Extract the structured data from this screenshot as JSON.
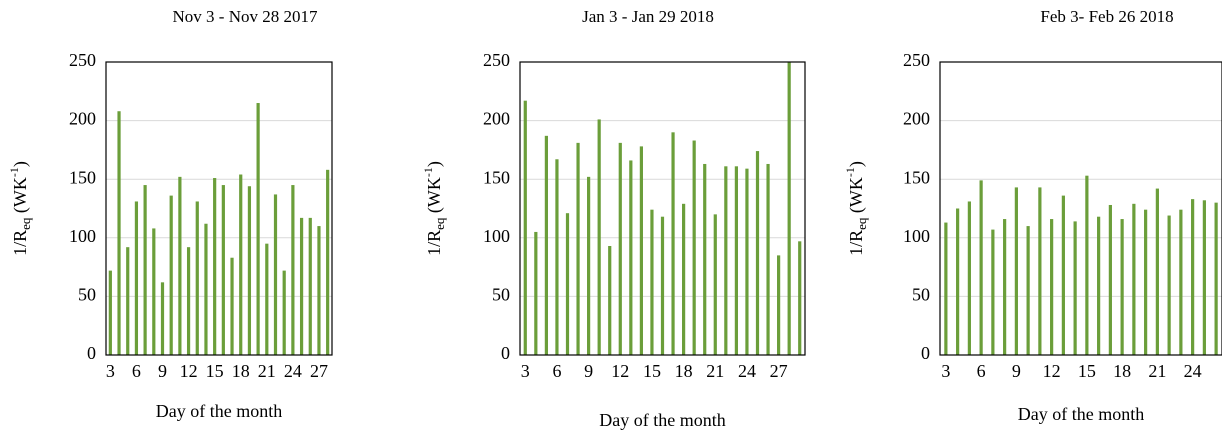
{
  "chart_data": [
    {
      "type": "bar",
      "title": "Nov 3 - Nov 28 2017",
      "x_label": "Day of the month",
      "y_label": [
        "1/R",
        "eq",
        " (WK",
        "-1",
        ")"
      ],
      "categories": [
        "3",
        null,
        null,
        "6",
        null,
        null,
        "9",
        null,
        null,
        "12",
        null,
        null,
        "15",
        null,
        null,
        "18",
        null,
        null,
        "21",
        null,
        null,
        "24",
        null,
        null,
        "27",
        null
      ],
      "values": [
        72,
        208,
        92,
        131,
        145,
        108,
        62,
        136,
        152,
        92,
        131,
        112,
        151,
        145,
        83,
        154,
        144,
        215,
        95,
        137,
        72,
        145,
        117,
        117,
        110,
        158
      ],
      "color": "#6b9e3a",
      "ylim": [
        0,
        250
      ],
      "yticks": [
        0,
        50,
        100,
        150,
        200,
        250
      ],
      "grid": true
    },
    {
      "type": "bar",
      "title": "Jan 3 - Jan 29 2018",
      "x_label": "Day of the month",
      "y_label": [
        "1/R",
        "eq",
        " (WK",
        "-1",
        ")"
      ],
      "categories": [
        "3",
        null,
        null,
        "6",
        null,
        null,
        "9",
        null,
        null,
        "12",
        null,
        null,
        "15",
        null,
        null,
        "18",
        null,
        null,
        "21",
        null,
        null,
        "24",
        null,
        null,
        "27",
        null,
        null
      ],
      "values": [
        217,
        105,
        187,
        167,
        121,
        181,
        152,
        201,
        93,
        181,
        166,
        178,
        124,
        118,
        190,
        129,
        183,
        163,
        120,
        161,
        161,
        159,
        174,
        163,
        85,
        250,
        97
      ],
      "color": "#6b9e3a",
      "ylim": [
        0,
        250
      ],
      "yticks": [
        0,
        50,
        100,
        150,
        200,
        250
      ],
      "grid": true
    },
    {
      "type": "bar",
      "title": "Feb 3- Feb 26 2018",
      "x_label": "Day of the month",
      "y_label": [
        "1/R",
        "eq",
        " (WK",
        "-1",
        ")"
      ],
      "categories": [
        "3",
        null,
        null,
        "6",
        null,
        null,
        "9",
        null,
        null,
        "12",
        null,
        null,
        "15",
        null,
        null,
        "18",
        null,
        null,
        "21",
        null,
        null,
        "24",
        null,
        null
      ],
      "values": [
        113,
        125,
        131,
        149,
        107,
        116,
        143,
        110,
        143,
        116,
        136,
        114,
        153,
        118,
        128,
        116,
        129,
        124,
        142,
        119,
        124,
        133,
        132,
        130
      ],
      "color": "#6b9e3a",
      "ylim": [
        0,
        250
      ],
      "yticks": [
        0,
        50,
        100,
        150,
        200,
        250
      ],
      "grid": true
    }
  ]
}
